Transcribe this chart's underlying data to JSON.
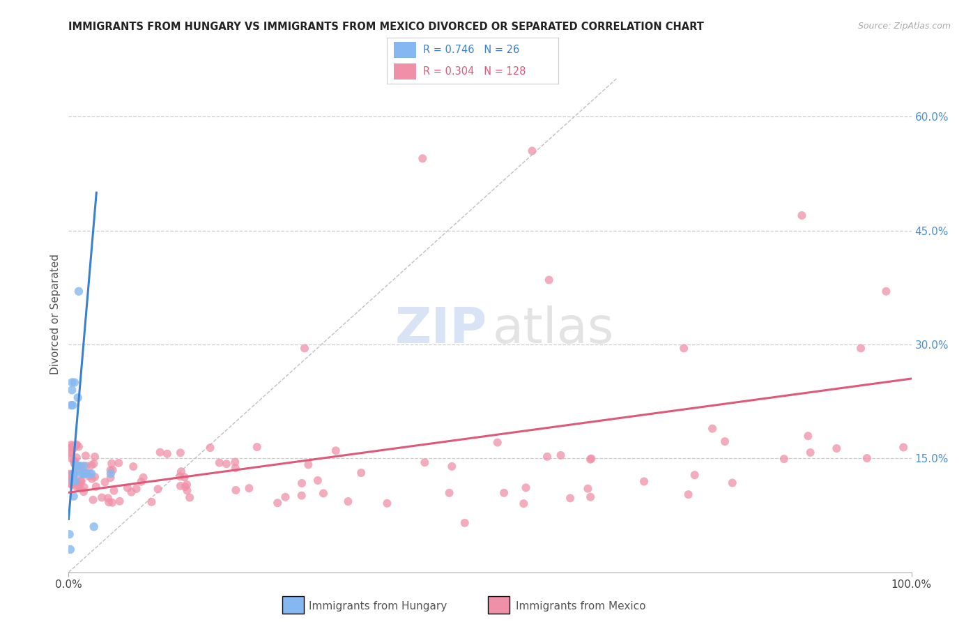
{
  "title": "IMMIGRANTS FROM HUNGARY VS IMMIGRANTS FROM MEXICO DIVORCED OR SEPARATED CORRELATION CHART",
  "source": "Source: ZipAtlas.com",
  "ylabel": "Divorced or Separated",
  "right_yticks": [
    "15.0%",
    "30.0%",
    "45.0%",
    "60.0%"
  ],
  "right_ytick_vals": [
    0.15,
    0.3,
    0.45,
    0.6
  ],
  "legend_hungary": {
    "R": "0.746",
    "N": "26"
  },
  "legend_mexico": {
    "R": "0.304",
    "N": "128"
  },
  "hungary_scatter_color": "#85b8f0",
  "mexico_scatter_color": "#f090a8",
  "hungary_line_color": "#3a80d0",
  "mexico_line_color": "#e05878",
  "diagonal_color": "#c0c0c0",
  "background_color": "#ffffff",
  "xlim": [
    0.0,
    1.0
  ],
  "ylim": [
    0.0,
    0.68
  ],
  "hungary_x": [
    0.001,
    0.002,
    0.003,
    0.004,
    0.004,
    0.005,
    0.005,
    0.006,
    0.006,
    0.007,
    0.007,
    0.008,
    0.009,
    0.01,
    0.011,
    0.012,
    0.013,
    0.015,
    0.017,
    0.018,
    0.019,
    0.021,
    0.025,
    0.027,
    0.03,
    0.05
  ],
  "hungary_y": [
    0.05,
    0.03,
    0.22,
    0.24,
    0.25,
    0.22,
    0.12,
    0.13,
    0.1,
    0.25,
    0.13,
    0.12,
    0.14,
    0.14,
    0.23,
    0.37,
    0.14,
    0.13,
    0.13,
    0.14,
    0.13,
    0.13,
    0.13,
    0.13,
    0.06,
    0.13
  ],
  "hungary_line_x": [
    0.0,
    0.033
  ],
  "hungary_line_y": [
    0.07,
    0.5
  ],
  "mexico_line_x": [
    0.0,
    1.0
  ],
  "mexico_line_y": [
    0.105,
    0.255
  ]
}
